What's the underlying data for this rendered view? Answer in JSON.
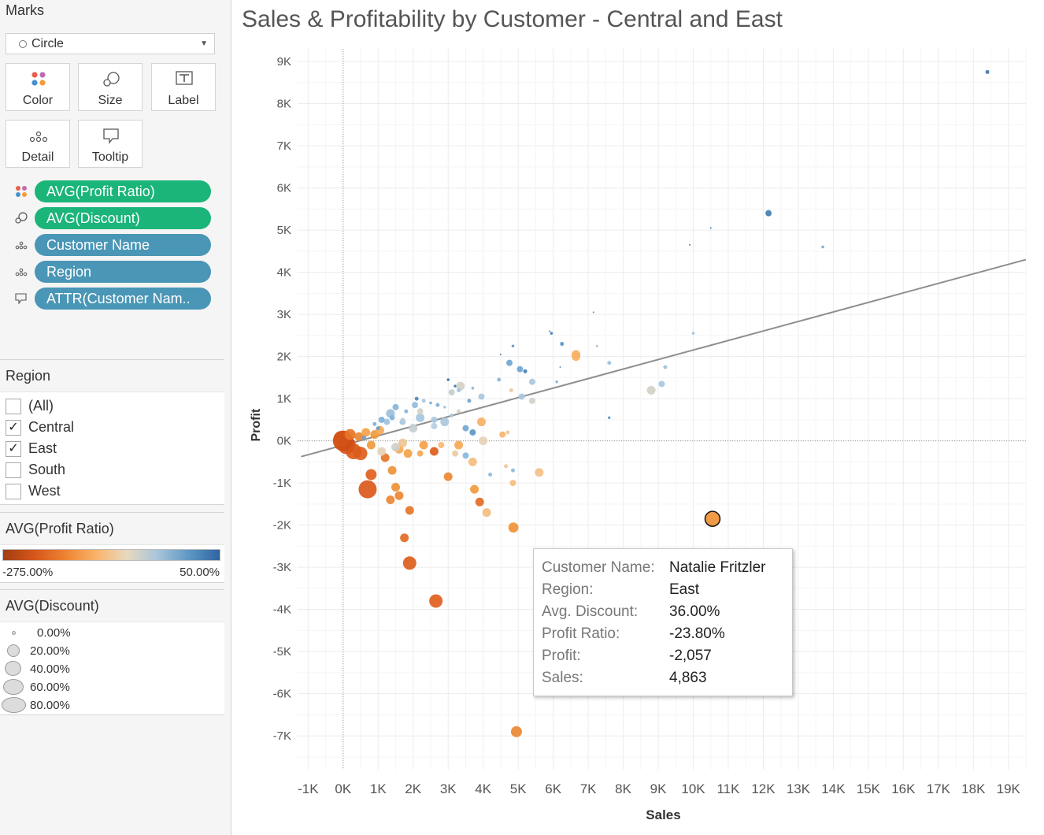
{
  "marks": {
    "title": "Marks",
    "mark_type": "Circle",
    "buttons": [
      {
        "label": "Color",
        "icon": "color-dots-icon"
      },
      {
        "label": "Size",
        "icon": "size-circles-icon"
      },
      {
        "label": "Label",
        "icon": "label-t-icon"
      },
      {
        "label": "Detail",
        "icon": "detail-dots-icon"
      },
      {
        "label": "Tooltip",
        "icon": "tooltip-bubble-icon"
      }
    ],
    "pills": [
      {
        "label": "AVG(Profit Ratio)",
        "encoding": "color",
        "icon": "color-dots-icon",
        "color": "#1bb579"
      },
      {
        "label": "AVG(Discount)",
        "encoding": "size",
        "icon": "size-circles-icon",
        "color": "#1bb579"
      },
      {
        "label": "Customer Name",
        "encoding": "detail",
        "icon": "detail-dots-icon",
        "color": "#4a96b6"
      },
      {
        "label": "Region",
        "encoding": "detail",
        "icon": "detail-dots-icon",
        "color": "#4a96b6"
      },
      {
        "label": "ATTR(Customer Nam..",
        "encoding": "tooltip",
        "icon": "tooltip-bubble-icon",
        "color": "#4a96b6"
      }
    ]
  },
  "region_filter": {
    "title": "Region",
    "items": [
      {
        "label": "(All)",
        "checked": false
      },
      {
        "label": "Central",
        "checked": true
      },
      {
        "label": "East",
        "checked": true
      },
      {
        "label": "South",
        "checked": false
      },
      {
        "label": "West",
        "checked": false
      }
    ]
  },
  "color_legend": {
    "title": "AVG(Profit Ratio)",
    "min_label": "-275.00%",
    "max_label": "50.00%",
    "colors": [
      "#a33d12",
      "#d4561a",
      "#ee8433",
      "#f9b46a",
      "#e8d8bf",
      "#a9c6da",
      "#5d97c3",
      "#2e64a1"
    ]
  },
  "size_legend": {
    "title": "AVG(Discount)",
    "items": [
      "0.00%",
      "20.00%",
      "40.00%",
      "60.00%",
      "80.00%"
    ]
  },
  "chart_data": {
    "type": "scatter",
    "title": "Sales & Profitability by Customer - Central and East",
    "xlabel": "Sales",
    "ylabel": "Profit",
    "xlim": [
      -1300,
      19500
    ],
    "ylim": [
      -7800,
      9300
    ],
    "x_ticks": [
      -1000,
      0,
      1000,
      2000,
      3000,
      4000,
      5000,
      6000,
      7000,
      8000,
      9000,
      10000,
      11000,
      12000,
      13000,
      14000,
      15000,
      16000,
      17000,
      18000,
      19000
    ],
    "x_tick_labels": [
      "-1K",
      "0K",
      "1K",
      "2K",
      "3K",
      "4K",
      "5K",
      "6K",
      "7K",
      "8K",
      "9K",
      "10K",
      "11K",
      "12K",
      "13K",
      "14K",
      "15K",
      "16K",
      "17K",
      "18K",
      "19K"
    ],
    "y_ticks": [
      -7000,
      -6000,
      -5000,
      -4000,
      -3000,
      -2000,
      -1000,
      0,
      1000,
      2000,
      3000,
      4000,
      5000,
      6000,
      7000,
      8000,
      9000
    ],
    "y_tick_labels": [
      "-7K",
      "-6K",
      "-5K",
      "-4K",
      "-3K",
      "-2K",
      "-1K",
      "0K",
      "1K",
      "2K",
      "3K",
      "4K",
      "5K",
      "6K",
      "7K",
      "8K",
      "9K"
    ],
    "grid": true,
    "trend_line": {
      "x": [
        -1200,
        19500
      ],
      "y": [
        -375,
        4300
      ]
    },
    "series_fields": [
      "Sales",
      "Profit",
      "AVG(Discount)",
      "AVG(Profit Ratio)"
    ],
    "points": [
      [
        18400,
        8750,
        0.1,
        0.45
      ],
      [
        12150,
        5400,
        0.2,
        0.44
      ],
      [
        13700,
        4600,
        0.05,
        0.33
      ],
      [
        10500,
        5050,
        0,
        0.48
      ],
      [
        9900,
        4650,
        0,
        0.47
      ],
      [
        7150,
        3050,
        0,
        0.43
      ],
      [
        10000,
        2550,
        0.05,
        0.25
      ],
      [
        5900,
        2600,
        0,
        0.44
      ],
      [
        5950,
        2550,
        0.05,
        0.44
      ],
      [
        6250,
        2300,
        0.1,
        0.37
      ],
      [
        6650,
        2050,
        0.3,
        -0.05
      ],
      [
        7600,
        1850,
        0.1,
        0.24
      ],
      [
        9200,
        1750,
        0.1,
        0.24
      ],
      [
        7250,
        2250,
        0,
        0.44
      ],
      [
        4500,
        2050,
        0,
        0.47
      ],
      [
        4850,
        2250,
        0.05,
        0.37
      ],
      [
        4750,
        1850,
        0.2,
        0.33
      ],
      [
        5050,
        1700,
        0.2,
        0.33
      ],
      [
        5200,
        1650,
        0.1,
        0.44
      ],
      [
        4450,
        1450,
        0.1,
        0.28
      ],
      [
        5400,
        1400,
        0.2,
        0.22
      ],
      [
        6100,
        1400,
        0.05,
        0.3
      ],
      [
        9100,
        1350,
        0.2,
        0.22
      ],
      [
        8800,
        1200,
        0.3,
        0.14
      ],
      [
        5100,
        1050,
        0.2,
        0.22
      ],
      [
        5400,
        950,
        0.2,
        0.14
      ],
      [
        4800,
        1200,
        0.1,
        0.07
      ],
      [
        3950,
        1050,
        0.2,
        0.22
      ],
      [
        3700,
        1250,
        0.05,
        0.3
      ],
      [
        3600,
        950,
        0.1,
        0.33
      ],
      [
        3200,
        1300,
        0.05,
        0.47
      ],
      [
        3000,
        1450,
        0.05,
        0.47
      ],
      [
        3350,
        1300,
        0.3,
        0.14
      ],
      [
        3100,
        1150,
        0.2,
        0.17
      ],
      [
        3300,
        1200,
        0.1,
        0.24
      ],
      [
        2100,
        1000,
        0.1,
        0.4
      ],
      [
        2050,
        850,
        0.2,
        0.26
      ],
      [
        2300,
        950,
        0.1,
        0.22
      ],
      [
        2500,
        900,
        0.05,
        0.33
      ],
      [
        2700,
        850,
        0.1,
        0.3
      ],
      [
        2900,
        800,
        0.05,
        0.25
      ],
      [
        1500,
        800,
        0.2,
        0.29
      ],
      [
        1350,
        650,
        0.3,
        0.25
      ],
      [
        1800,
        700,
        0.1,
        0.29
      ],
      [
        1100,
        500,
        0.2,
        0.3
      ],
      [
        1250,
        450,
        0.2,
        0.24
      ],
      [
        900,
        400,
        0.1,
        0.3
      ],
      [
        1700,
        450,
        0.2,
        0.22
      ],
      [
        2200,
        550,
        0.3,
        0.23
      ],
      [
        2600,
        500,
        0.2,
        0.22
      ],
      [
        3100,
        600,
        0.1,
        0.22
      ],
      [
        3300,
        700,
        0.1,
        0.14
      ],
      [
        2000,
        300,
        0.3,
        0.17
      ],
      [
        2600,
        350,
        0.2,
        0.2
      ],
      [
        2900,
        450,
        0.3,
        0.22
      ],
      [
        3700,
        200,
        0.2,
        0.37
      ],
      [
        4000,
        0,
        0.3,
        0.1
      ],
      [
        3500,
        -350,
        0.2,
        0.28
      ],
      [
        4700,
        200,
        0.1,
        0.07
      ],
      [
        4550,
        150,
        0.2,
        -0.03
      ],
      [
        4200,
        -800,
        0.1,
        0.27
      ],
      [
        4650,
        -600,
        0.1,
        0.05
      ],
      [
        4850,
        -700,
        0.1,
        0.27
      ],
      [
        4850,
        -1000,
        0.2,
        0.02
      ],
      [
        5600,
        -750,
        0.3,
        0.03
      ],
      [
        4100,
        -1700,
        0.3,
        0.02
      ],
      [
        3750,
        -1150,
        0.3,
        -0.2
      ],
      [
        3900,
        -1450,
        0.3,
        -0.45
      ],
      [
        3000,
        -850,
        0.3,
        -0.3
      ],
      [
        3700,
        -500,
        0.3,
        0.02
      ],
      [
        3200,
        -300,
        0.2,
        0.07
      ],
      [
        2800,
        -100,
        0.2,
        0.0
      ],
      [
        3300,
        -100,
        0.3,
        -0.1
      ],
      [
        2200,
        -300,
        0.2,
        -0.1
      ],
      [
        2600,
        -250,
        0.3,
        -0.7
      ],
      [
        2300,
        -100,
        0.3,
        -0.15
      ],
      [
        1400,
        -700,
        0.3,
        -0.25
      ],
      [
        1500,
        -1100,
        0.3,
        -0.25
      ],
      [
        1600,
        -1300,
        0.3,
        -0.3
      ],
      [
        1350,
        -1400,
        0.3,
        -0.3
      ],
      [
        800,
        -800,
        0.4,
        -0.6
      ],
      [
        700,
        -1150,
        0.7,
        -1.0
      ],
      [
        1200,
        -400,
        0.3,
        -0.4
      ],
      [
        500,
        -300,
        0.5,
        -0.6
      ],
      [
        300,
        -250,
        0.6,
        -0.9
      ],
      [
        100,
        -100,
        0.7,
        -1.2
      ],
      [
        0,
        0,
        0.8,
        -1.7
      ],
      [
        -50,
        50,
        0.6,
        -1.4
      ],
      [
        200,
        150,
        0.4,
        -0.4
      ],
      [
        450,
        100,
        0.3,
        -0.3
      ],
      [
        650,
        200,
        0.3,
        -0.15
      ],
      [
        900,
        150,
        0.3,
        -0.2
      ],
      [
        1050,
        250,
        0.3,
        -0.1
      ],
      [
        800,
        -100,
        0.3,
        -0.2
      ],
      [
        1600,
        -200,
        0.3,
        -0.1
      ],
      [
        1850,
        -300,
        0.3,
        -0.15
      ],
      [
        1700,
        -50,
        0.3,
        0.05
      ],
      [
        1100,
        -250,
        0.3,
        0.1
      ],
      [
        1500,
        -150,
        0.3,
        0.15
      ],
      [
        1900,
        -1650,
        0.3,
        -0.4
      ],
      [
        1750,
        -2300,
        0.3,
        -0.45
      ],
      [
        1900,
        -2900,
        0.5,
        -0.7
      ],
      [
        2650,
        -3800,
        0.5,
        -0.6
      ],
      [
        4863,
        -2057,
        0.36,
        -0.238
      ],
      [
        10550,
        -1850,
        0.3,
        -0.25
      ],
      [
        4950,
        -6900,
        0.4,
        -0.3
      ],
      [
        6650,
        2000,
        0.3,
        -0.05
      ],
      [
        6200,
        1750,
        0,
        0.4
      ],
      [
        7600,
        550,
        0.05,
        0.37
      ],
      [
        3500,
        300,
        0.2,
        0.33
      ],
      [
        3950,
        450,
        0.3,
        -0.05
      ],
      [
        1700,
        500,
        0.1,
        0.2
      ],
      [
        2200,
        700,
        0.2,
        0.14
      ],
      [
        1400,
        550,
        0.15,
        0.3
      ],
      [
        1000,
        300,
        0.1,
        0.35
      ],
      [
        600,
        80,
        0.1,
        0.35
      ]
    ],
    "highlighted_point": {
      "index": 104,
      "tooltip": [
        {
          "key": "Customer Name:",
          "value": "Natalie Fritzler"
        },
        {
          "key": "Region:",
          "value": "East"
        },
        {
          "key": "Avg. Discount:",
          "value": "36.00%"
        },
        {
          "key": "Profit Ratio:",
          "value": "-23.80%"
        },
        {
          "key": "Profit:",
          "value": "-2,057"
        },
        {
          "key": "Sales:",
          "value": "4,863"
        }
      ]
    }
  }
}
